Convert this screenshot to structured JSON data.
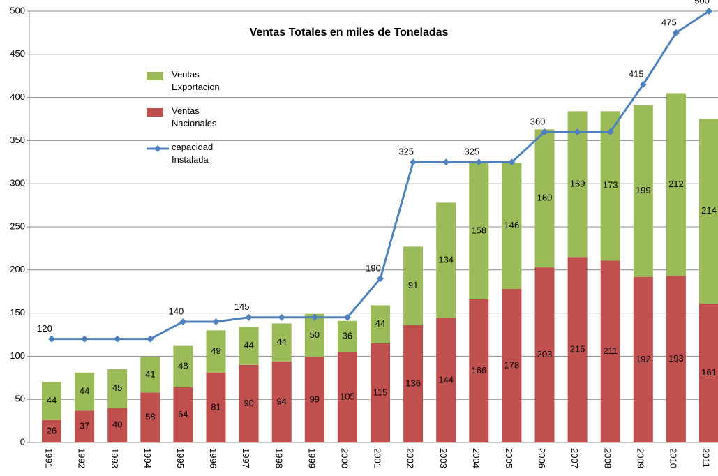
{
  "chart_data": {
    "type": "bar-line",
    "title": "Ventas Totales en miles de Toneladas",
    "categories": [
      "1991",
      "1992",
      "1993",
      "1994",
      "1995",
      "1996",
      "1997",
      "1998",
      "1999",
      "2000",
      "2001",
      "2002",
      "2003",
      "2004",
      "2005",
      "2006",
      "2007",
      "2008",
      "2009",
      "2010",
      "2011"
    ],
    "series": [
      {
        "name": "Ventas Exportacion",
        "color": "#9bbb59",
        "kind": "stacked-bar",
        "values": [
          44,
          44,
          45,
          41,
          48,
          49,
          44,
          44,
          50,
          36,
          44,
          91,
          134,
          158,
          146,
          160,
          169,
          173,
          199,
          212,
          214
        ]
      },
      {
        "name": "Ventas Nacionales",
        "color": "#c0504d",
        "kind": "stacked-bar",
        "values": [
          26,
          37,
          40,
          58,
          64,
          81,
          90,
          94,
          99,
          105,
          115,
          136,
          144,
          166,
          178,
          203,
          215,
          211,
          192,
          193,
          161
        ]
      },
      {
        "name": "capacidad Instalada",
        "color": "#4f81bd",
        "kind": "line",
        "values": [
          120,
          120,
          120,
          120,
          140,
          140,
          145,
          145,
          145,
          145,
          190,
          325,
          325,
          325,
          325,
          360,
          360,
          360,
          415,
          475,
          500
        ],
        "label_indices": [
          0,
          4,
          6,
          10,
          11,
          13,
          15,
          18,
          19,
          20
        ]
      }
    ],
    "stack_order": [
      1,
      0
    ],
    "ylim": [
      0,
      500
    ],
    "yticks": [
      0,
      50,
      100,
      150,
      200,
      250,
      300,
      350,
      400,
      450,
      500
    ],
    "grid": true
  }
}
